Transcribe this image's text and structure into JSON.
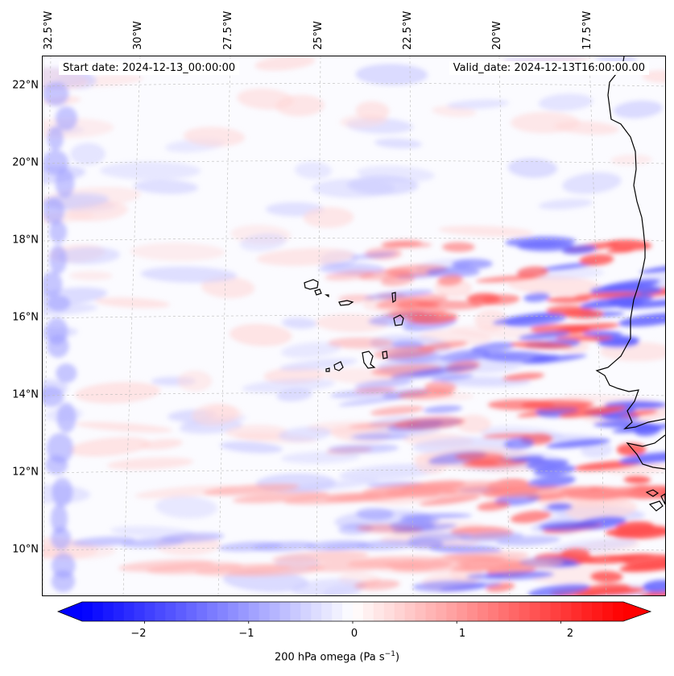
{
  "top_axis": {
    "longitude_labels": [
      "32.5°W",
      "30°W",
      "27.5°W",
      "25°W",
      "22.5°W",
      "20°W",
      "17.5°W"
    ]
  },
  "left_axis": {
    "latitude_labels": [
      "22°N",
      "20°N",
      "18°N",
      "16°N",
      "14°N",
      "12°N",
      "10°N"
    ]
  },
  "info": {
    "start_date": "Start date: 2024-12-13_00:00:00",
    "valid_date": "Valid_date: 2024-12-13T16:00:00.00"
  },
  "colorbar": {
    "ticks": [
      "−2",
      "−1",
      "0",
      "1",
      "2"
    ],
    "tick_values": [
      -2,
      -1,
      0,
      1,
      2
    ],
    "range": [
      -2.6,
      2.6
    ],
    "extend": "both",
    "label": "200 hPa omega (Pa s",
    "label_exponent": "−1",
    "label_close": ")",
    "colormap": "bwr",
    "colors": {
      "negative": "#0000ff",
      "zero": "#ffffff",
      "positive": "#ff0000"
    }
  },
  "map": {
    "projection": "lambert-conformal",
    "extent_lon": [
      -33,
      -16
    ],
    "extent_lat": [
      9,
      23
    ],
    "features": [
      "coastline",
      "gridlines"
    ],
    "field": "200 hPa omega"
  }
}
